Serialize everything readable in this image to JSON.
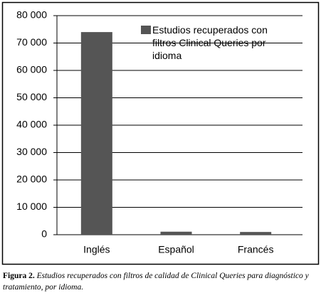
{
  "chart_data": {
    "type": "bar",
    "categories": [
      "Inglés",
      "Español",
      "Francés"
    ],
    "series": [
      {
        "name": "Estudios recuperados con filtros Clinical Queries por idioma",
        "color": "#555555",
        "values": [
          74000,
          1100,
          1000
        ]
      }
    ],
    "ylim": [
      0,
      80000
    ],
    "yticks": [
      0,
      {
        "value": 10000,
        "label": "10 000"
      },
      {
        "value": 20000,
        "label": "20 000"
      },
      {
        "value": 30000,
        "label": "30 000"
      },
      {
        "value": 40000,
        "label": "40 000"
      },
      {
        "value": 50000,
        "label": "50 000"
      },
      {
        "value": 60000,
        "label": "60 000"
      },
      {
        "value": 70000,
        "label": "70 000"
      },
      {
        "value": 80000,
        "label": "80 000"
      }
    ],
    "grid": true,
    "legend": "upper right",
    "caption_label": "Figura 2.",
    "caption": "Estudios recuperados con filtros de calidad de Clinical Queries para diagnóstico y tratamiento, por idioma."
  }
}
